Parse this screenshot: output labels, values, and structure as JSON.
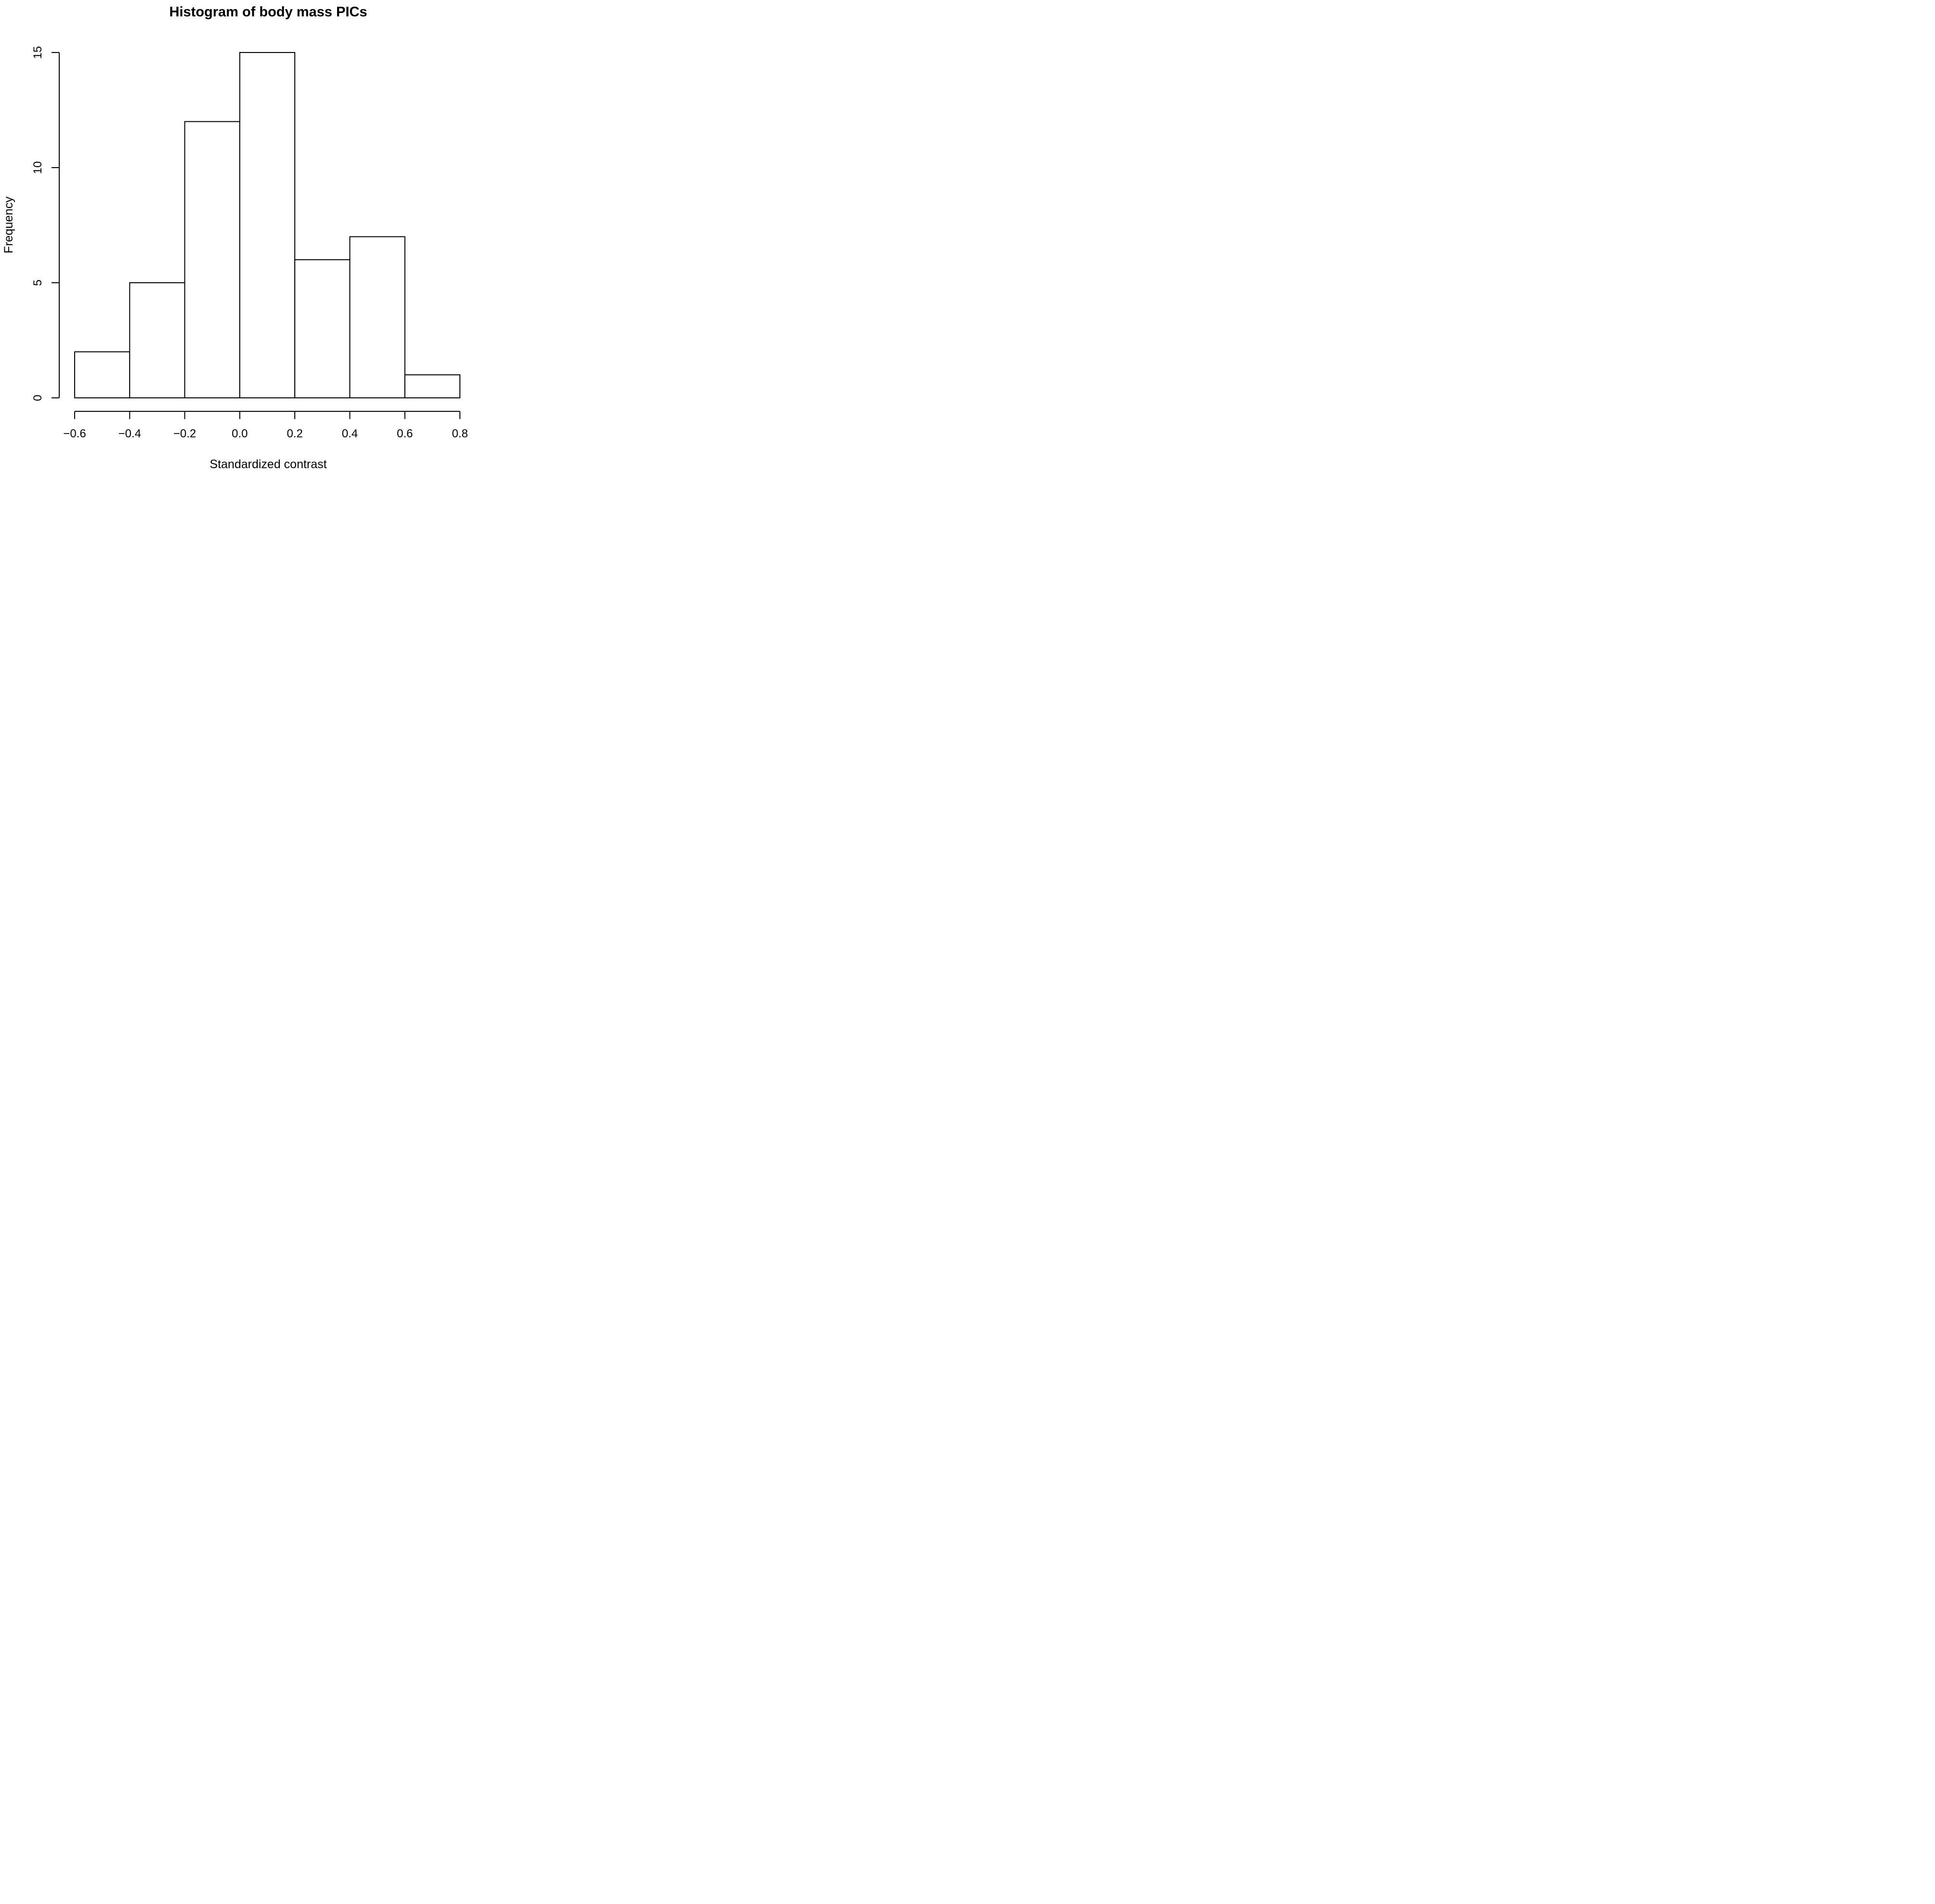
{
  "chart_data": {
    "type": "bar",
    "chart_kind": "histogram",
    "title": "Histogram of body mass PICs",
    "xlabel": "Standardized contrast",
    "ylabel": "Frequency",
    "bin_edges": [
      -0.6,
      -0.4,
      -0.2,
      0.0,
      0.2,
      0.4,
      0.6,
      0.8
    ],
    "counts": [
      2,
      5,
      12,
      15,
      6,
      7,
      1
    ],
    "x_tick_values": [
      -0.6,
      -0.4,
      -0.2,
      0.0,
      0.2,
      0.4,
      0.6,
      0.8
    ],
    "x_tick_labels": [
      "−0.6",
      "−0.4",
      "−0.2",
      "0.0",
      "0.2",
      "0.4",
      "0.6",
      "0.8"
    ],
    "y_tick_values": [
      0,
      5,
      10,
      15
    ],
    "y_tick_labels": [
      "0",
      "5",
      "10",
      "15"
    ],
    "xlim": [
      -0.6,
      0.8
    ],
    "ylim": [
      0,
      15
    ],
    "grid": "off",
    "legend": "none",
    "bar_fill": "#ffffff",
    "stroke_color": "#000000",
    "background": "#ffffff"
  }
}
